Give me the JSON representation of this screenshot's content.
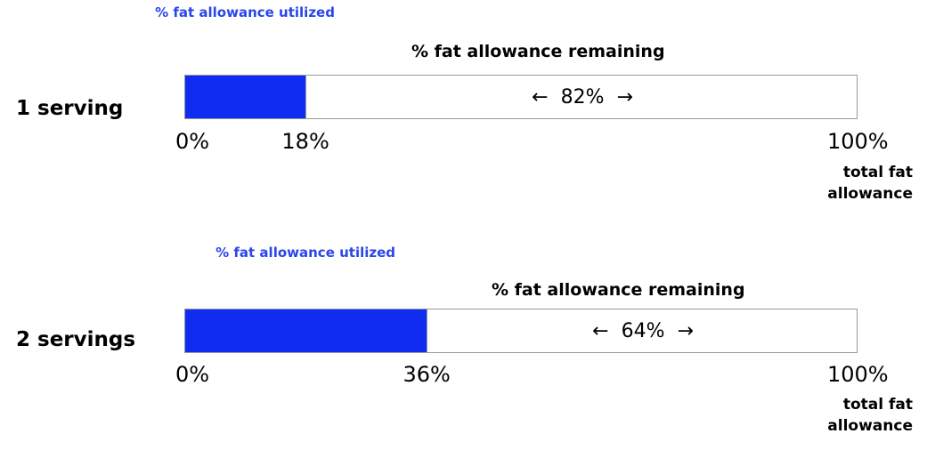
{
  "chart_data": [
    {
      "type": "bar",
      "category": "1 serving",
      "used_label": "% fat allowance utilized",
      "remaining_label": "% fat allowance remaining",
      "used_value": 18,
      "remaining_value": 82,
      "remaining_text": "82%",
      "ticks": [
        "0%",
        "18%",
        "100%"
      ],
      "total_label": "total fat allowance",
      "xlim": [
        0,
        100
      ]
    },
    {
      "type": "bar",
      "category": "2 servings",
      "used_label": "% fat allowance utilized",
      "remaining_label": "% fat allowance remaining",
      "used_value": 36,
      "remaining_value": 64,
      "remaining_text": "64%",
      "ticks": [
        "0%",
        "36%",
        "100%"
      ],
      "total_label": "total fat allowance",
      "xlim": [
        0,
        100
      ]
    }
  ],
  "glyphs": {
    "left_arrow": "←",
    "right_arrow": "→"
  },
  "colors": {
    "used_fill": "#0f2cf0",
    "used_label": "#2b46e8",
    "border": "#9a9a9a"
  }
}
